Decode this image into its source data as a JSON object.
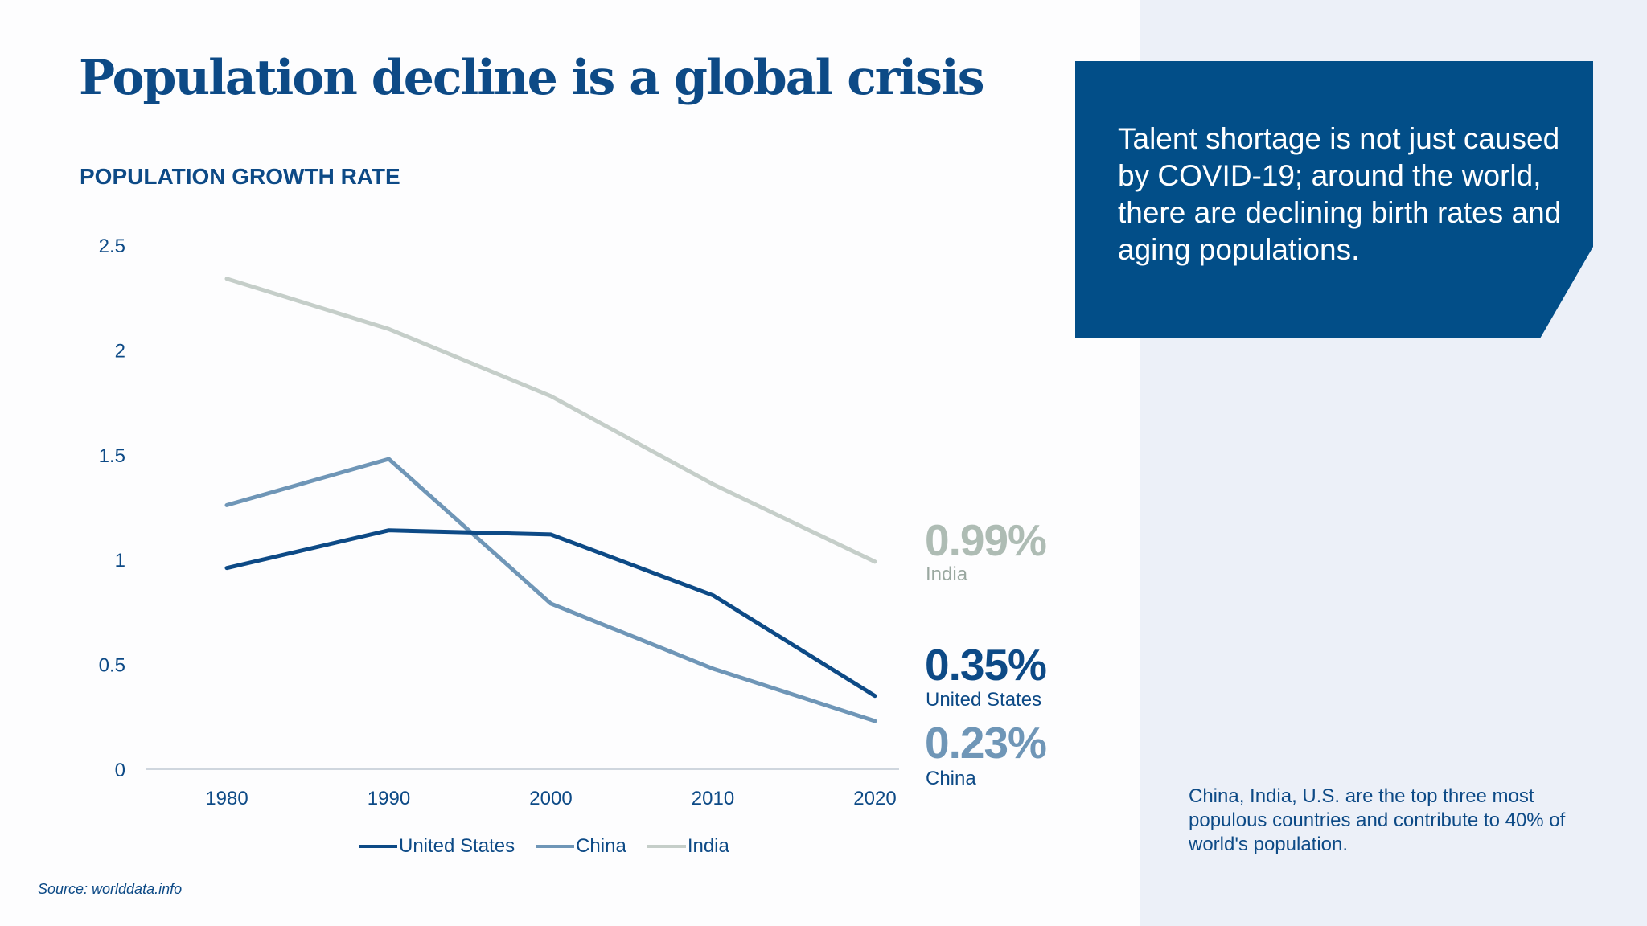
{
  "title": "Population decline is a global crisis",
  "chart_data": {
    "type": "line",
    "title": "POPULATION GROWTH RATE",
    "x": [
      "1980",
      "1990",
      "2000",
      "2010",
      "2020"
    ],
    "yticks": [
      "0",
      "0.5",
      "1",
      "1.5",
      "2",
      "2.5"
    ],
    "ylim": [
      0,
      2.5
    ],
    "grid": false,
    "legend": "bottom",
    "series": [
      {
        "name": "United States",
        "color": "#0d4a86",
        "values": [
          0.96,
          1.14,
          1.12,
          0.83,
          0.35
        ]
      },
      {
        "name": "China",
        "color": "#6f96b7",
        "values": [
          1.26,
          1.48,
          0.79,
          0.48,
          0.23
        ]
      },
      {
        "name": "India",
        "color": "#c5cec9",
        "values": [
          2.34,
          2.1,
          1.78,
          1.36,
          0.99
        ]
      }
    ]
  },
  "end_labels": [
    {
      "value": "0.99%",
      "country": "India",
      "color": "#aebcb4",
      "sub_color": "#9aa8a0"
    },
    {
      "value": "0.35%",
      "country": "United States",
      "color": "#0d4a86",
      "sub_color": "#0d4a86"
    },
    {
      "value": "0.23%",
      "country": "China",
      "color": "#6f96b7",
      "sub_color": "#0d4a86"
    }
  ],
  "callout": "Talent shortage is not just caused by COVID-19; around the world, there are declining birth rates and aging populations.",
  "callout_color": "#024e88",
  "note": "China, India, U.S. are the top three most populous countries and contribute to 40% of world's population.",
  "source": "Source: worlddata.info"
}
